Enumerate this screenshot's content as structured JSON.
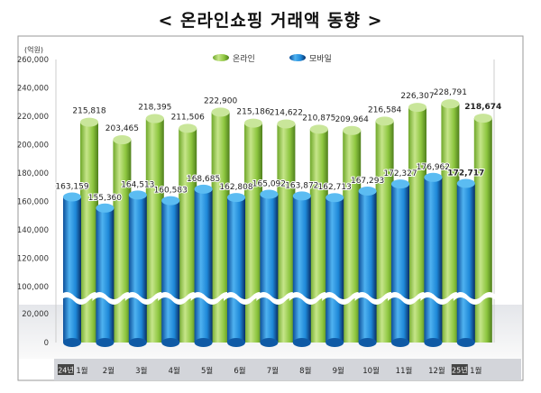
{
  "title": "< 온라인쇼핑 거래액 동향 >",
  "chart_data": {
    "type": "bar",
    "unit_label": "(억원)",
    "categories": [
      "1월",
      "2월",
      "3월",
      "4월",
      "5월",
      "6월",
      "7월",
      "8월",
      "9월",
      "10월",
      "11월",
      "12월",
      "1월"
    ],
    "year_badges": {
      "0": "24년",
      "12": "25년"
    },
    "series": [
      {
        "name": "온라인",
        "color": "#8dc63f",
        "values": [
          215818,
          203465,
          218395,
          211506,
          222900,
          215186,
          214622,
          210875,
          209964,
          216584,
          226307,
          228791,
          218674
        ]
      },
      {
        "name": "모바일",
        "color": "#1e88d8",
        "values": [
          163159,
          155360,
          164513,
          160583,
          168685,
          162808,
          165092,
          163872,
          162713,
          167293,
          172327,
          176962,
          172717
        ]
      }
    ],
    "yticks": [
      "260,000",
      "240,000",
      "220,000",
      "200,000",
      "180,000",
      "160,000",
      "140,000",
      "120,000",
      "100,000",
      "20,000",
      "0"
    ],
    "ytick_values": [
      260000,
      240000,
      220000,
      200000,
      180000,
      160000,
      140000,
      120000,
      100000,
      20000,
      0
    ],
    "axis_break": [
      20000,
      100000
    ],
    "ylim": [
      0,
      260000
    ],
    "legend_placement": "top",
    "bold_last": true
  }
}
